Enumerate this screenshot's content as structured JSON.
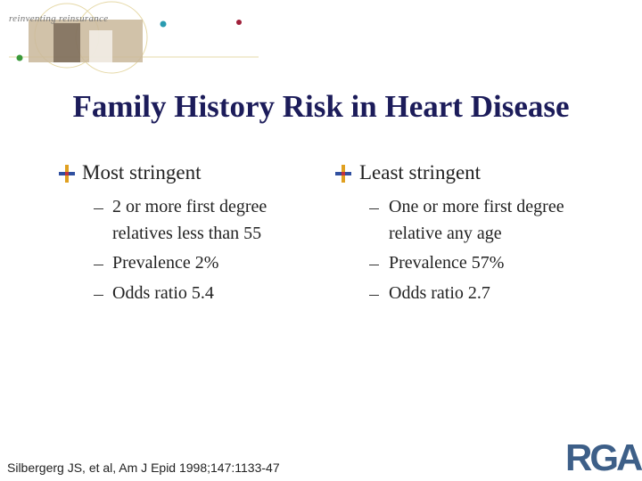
{
  "header": {
    "tagline": "reinventing reinsurance"
  },
  "title": "Family History Risk in Heart Disease",
  "columns": [
    {
      "heading": "Most stringent",
      "items": [
        "2 or more first degree relatives less than 55",
        "Prevalence 2%",
        "Odds ratio 5.4"
      ]
    },
    {
      "heading": "Least stringent",
      "items": [
        "One or more first degree relative any age",
        "Prevalence 57%",
        "Odds ratio 2.7"
      ]
    }
  ],
  "citation": "Silbergerg JS, et al, Am J Epid 1998;147:1133-47",
  "logo": "RGA"
}
